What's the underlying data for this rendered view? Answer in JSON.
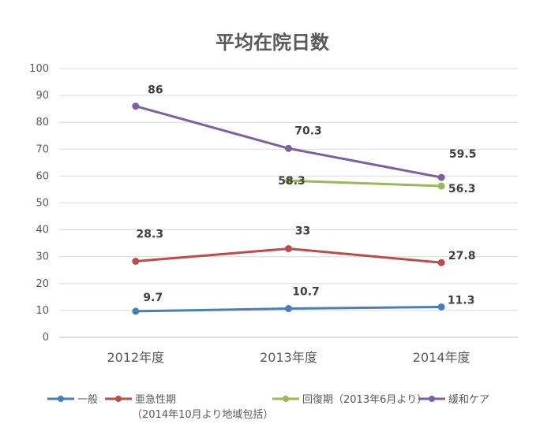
{
  "chart_data": {
    "type": "line",
    "title": "平均在院日数",
    "xlabel": "",
    "ylabel": "",
    "categories": [
      "2012年度",
      "2013年度",
      "2014年度"
    ],
    "ylim": [
      0,
      100
    ],
    "yticks": [
      0,
      10,
      20,
      30,
      40,
      50,
      60,
      70,
      80,
      90,
      100
    ],
    "grid": true,
    "legend_position": "bottom",
    "series": [
      {
        "name": "一般",
        "color": "#4a7ebb",
        "values": [
          9.7,
          10.7,
          11.3
        ]
      },
      {
        "name": "亜急性期",
        "name_line2": "（2014年10月より地域包括）",
        "color": "#be4b48",
        "values": [
          28.3,
          33,
          27.8
        ]
      },
      {
        "name": "回復期（2013年6月より）",
        "color": "#98b954",
        "values": [
          null,
          58.3,
          56.3
        ]
      },
      {
        "name": "緩和ケア",
        "color": "#7d60a0",
        "values": [
          86,
          70.3,
          59.5
        ]
      }
    ]
  }
}
